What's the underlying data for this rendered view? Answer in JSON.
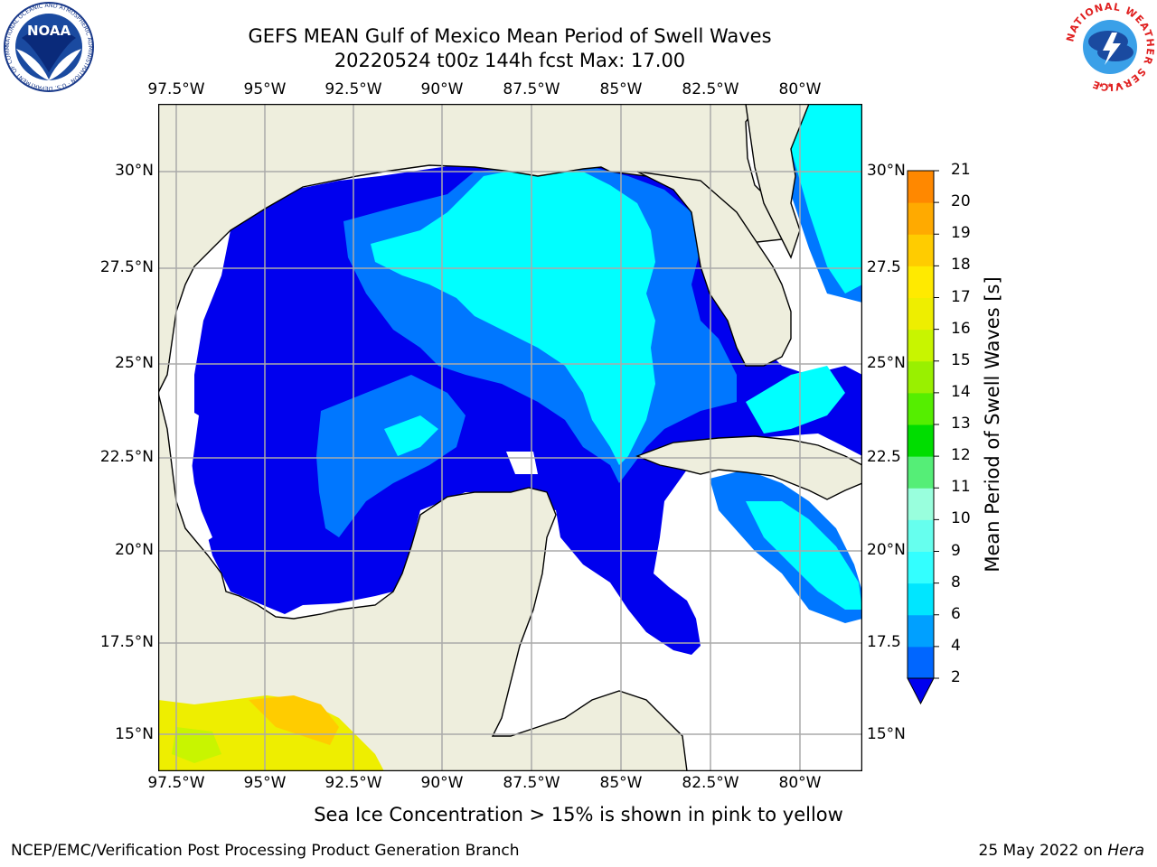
{
  "title_line1": "GEFS MEAN Gulf of Mexico Mean Period of Swell Waves",
  "title_line2": "20220524 t00z 144h fcst   Max: 17.00",
  "lon_labels": [
    "97.5°W",
    "95°W",
    "92.5°W",
    "90°W",
    "87.5°W",
    "85°W",
    "82.5°W",
    "80°W"
  ],
  "lat_labels_left": [
    "30°N",
    "27.5°N",
    "25°N",
    "22.5°N",
    "20°N",
    "17.5°N",
    "15°N"
  ],
  "lat_labels_right": [
    "30°N",
    "27.5",
    "25°N",
    "22.5",
    "20°N",
    "17.5",
    "15°N"
  ],
  "colorbar": {
    "title": "Mean Period of Swell Waves [s]",
    "ticks": [
      "2",
      "4",
      "6",
      "7",
      "8",
      "9",
      "10",
      "11",
      "12",
      "13",
      "14",
      "15",
      "16",
      "17",
      "18",
      "19",
      "20",
      "21"
    ],
    "colors": [
      "#0066ff",
      "#00a0ff",
      "#00e6ff",
      "#33ffff",
      "#66ffee",
      "#99ffdd",
      "#55ee77",
      "#00dd00",
      "#55ee00",
      "#99f000",
      "#c8f500",
      "#eeee00",
      "#ffea00",
      "#ffcc00",
      "#ffaa00",
      "#ff8800",
      "#ff5500",
      "#ff2200",
      "#ff0000"
    ],
    "under_color": "#0000ee"
  },
  "caption": "Sea Ice Concentration > 15% is shown in pink to yellow",
  "credit": "NCEP/EMC/Verification Post Processing Product Generation Branch",
  "date_text": "25 May 2022 on",
  "date_host": "Hera",
  "logos": {
    "noaa_text": "NOAA",
    "noaa_ring": "NATIONAL OCEANIC AND ATMOSPHERIC ADMINISTRATION · U.S. DEPARTMENT OF COMMERCE",
    "nws_ring": "NATIONAL WEATHER SERVICE"
  },
  "colors": {
    "land": "#eeeedd",
    "water_low": "#0000ee",
    "water_mid": "#0077ff",
    "water_high": "#00ffff",
    "grid": "#aaaaaa"
  }
}
